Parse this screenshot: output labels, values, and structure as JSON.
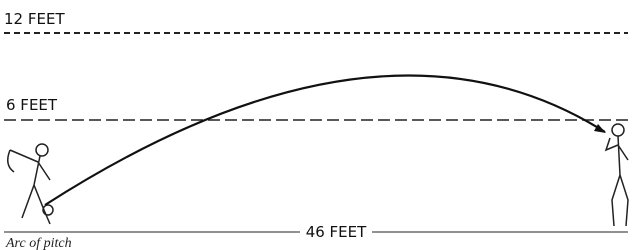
{
  "labels": {
    "high": "12 FEET",
    "mid": "6 FEET",
    "distance": "46 FEET"
  },
  "caption": "Arc of pitch"
}
